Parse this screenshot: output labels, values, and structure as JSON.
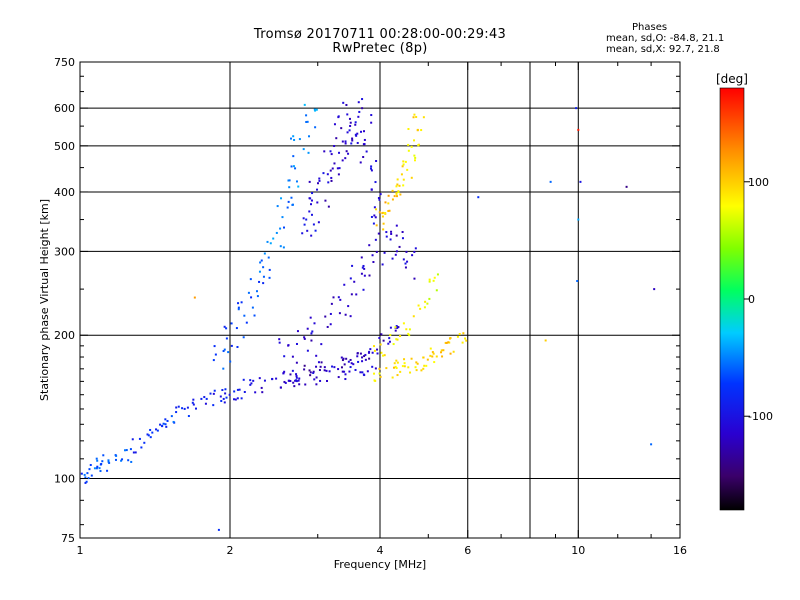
{
  "chart_data": {
    "type": "scatter",
    "title": "Tromsø 20170711 00:28:00-00:29:43",
    "subtitle": "RwPretec (8p)",
    "xlabel": "Frequency [MHz]",
    "ylabel": "Stationary phase Virtual Height [km]",
    "x_scale": "log",
    "y_scale": "log",
    "xlim": [
      1,
      16
    ],
    "ylim": [
      75,
      750
    ],
    "x_ticks": [
      1,
      2,
      4,
      6,
      10,
      16
    ],
    "x_tick_labels": [
      "1",
      "2",
      "4",
      "6",
      "10",
      "16"
    ],
    "x_minor_ticks": [
      3,
      5,
      7,
      8,
      9,
      12,
      14
    ],
    "y_ticks": [
      75,
      100,
      200,
      300,
      400,
      500,
      600,
      750
    ],
    "y_tick_labels": [
      "75",
      "100",
      "200",
      "300",
      "400",
      "500",
      "600",
      "750"
    ],
    "grid": true,
    "grid_x": [
      2,
      4,
      6,
      8,
      10
    ],
    "grid_y": [
      100,
      200,
      300,
      400,
      500,
      600
    ],
    "phase_stats": {
      "heading": "Phases",
      "line_o": "mean, sd,O: -84.8, 21.1",
      "line_x": "mean, sd,X:  92.7, 21.8"
    },
    "colorbar": {
      "label": "[deg]",
      "range": [
        -180,
        180
      ],
      "ticks": [
        -100,
        0,
        100
      ],
      "tick_labels": [
        "-100",
        "0",
        "100"
      ],
      "colormap": "rainbow"
    },
    "series": [
      {
        "x": [
          1.02,
          1.05,
          1.08,
          1.12,
          1.18,
          1.25,
          1.3,
          1.38,
          1.45,
          1.5,
          1.6,
          1.7,
          1.8,
          1.9,
          2.0,
          2.1,
          2.2,
          2.35,
          2.5,
          2.65,
          2.8,
          3.0,
          3.2,
          3.4,
          3.6,
          3.8
        ],
        "y": [
          100,
          102,
          106,
          108,
          108,
          112,
          118,
          125,
          130,
          133,
          138,
          142,
          145,
          148,
          150,
          152,
          155,
          158,
          160,
          162,
          163,
          164,
          166,
          168,
          170,
          172
        ],
        "phase": [
          -75,
          -60,
          -60,
          -65,
          -60,
          -70,
          -90,
          -80,
          -75,
          -70,
          -80,
          -90,
          -95,
          -90,
          -90,
          -100,
          -100,
          -110,
          -110,
          -110,
          -115,
          -110,
          -110,
          -110,
          -110,
          -110
        ],
        "spread_x": 0.035,
        "spread_y": 0.04,
        "repeat": 6
      },
      {
        "x": [
          1.95,
          2.05,
          2.15,
          2.25,
          2.35,
          2.45,
          2.55,
          2.65,
          2.75,
          2.85
        ],
        "y": [
          180,
          200,
          225,
          250,
          280,
          320,
          370,
          430,
          500,
          580
        ],
        "phase": [
          -70,
          -75,
          -70,
          -70,
          -60,
          -55,
          -55,
          -50,
          -50,
          -45
        ],
        "spread_x": 0.05,
        "spread_y": 0.06,
        "repeat": 8
      },
      {
        "x": [
          2.9,
          3.0,
          3.1,
          3.2,
          3.3,
          3.4,
          3.5,
          3.6,
          3.7,
          3.8,
          3.9
        ],
        "y": [
          350,
          380,
          420,
          460,
          500,
          540,
          560,
          560,
          520,
          450,
          380
        ],
        "phase": [
          -100,
          -110,
          -115,
          -110,
          -120,
          -115,
          -110,
          -115,
          -110,
          -105,
          -110
        ],
        "spread_x": 0.04,
        "spread_y": 0.12,
        "repeat": 9
      },
      {
        "x": [
          2.6,
          2.8,
          3.0,
          3.2,
          3.4,
          3.6,
          3.8,
          4.0,
          4.2,
          4.4,
          4.6
        ],
        "y": [
          180,
          190,
          200,
          220,
          240,
          260,
          290,
          310,
          320,
          300,
          280
        ],
        "phase": [
          -110,
          -115,
          -115,
          -120,
          -120,
          -115,
          -115,
          -110,
          -110,
          -115,
          -110
        ],
        "spread_x": 0.035,
        "spread_y": 0.1,
        "repeat": 7
      },
      {
        "x": [
          2.7,
          2.9,
          3.1,
          3.3,
          3.5,
          3.7,
          3.9,
          4.1,
          4.3
        ],
        "y": [
          165,
          168,
          172,
          175,
          178,
          182,
          188,
          195,
          205
        ],
        "phase": [
          -120,
          -125,
          -125,
          -120,
          -120,
          -125,
          -120,
          -115,
          -115
        ],
        "spread_x": 0.03,
        "spread_y": 0.03,
        "repeat": 6
      },
      {
        "x": [
          4.0,
          4.1,
          4.2,
          4.3,
          4.4,
          4.5,
          4.6,
          4.7,
          4.8
        ],
        "y": [
          350,
          370,
          380,
          400,
          420,
          450,
          480,
          520,
          560
        ],
        "phase": [
          95,
          100,
          105,
          95,
          90,
          90,
          85,
          90,
          95
        ],
        "spread_x": 0.03,
        "spread_y": 0.05,
        "repeat": 6
      },
      {
        "x": [
          4.0,
          4.2,
          4.4,
          4.6,
          4.8,
          5.0,
          5.2,
          5.4,
          5.6,
          5.8
        ],
        "y": [
          165,
          168,
          170,
          172,
          175,
          178,
          182,
          186,
          190,
          195
        ],
        "phase": [
          90,
          95,
          92,
          90,
          88,
          95,
          98,
          100,
          105,
          100
        ],
        "spread_x": 0.03,
        "spread_y": 0.04,
        "repeat": 6
      },
      {
        "x": [
          4.0,
          4.3,
          4.6,
          4.9,
          5.1
        ],
        "y": [
          190,
          200,
          210,
          230,
          260
        ],
        "phase": [
          85,
          85,
          80,
          75,
          70
        ],
        "spread_x": 0.03,
        "spread_y": 0.05,
        "repeat": 6
      },
      {
        "x": [
          8.6,
          8.8,
          9.9,
          10.0,
          10.1,
          10.0,
          9.95,
          12.5,
          14.2,
          14.0,
          6.3,
          1.7,
          1.9
        ],
        "y": [
          195,
          420,
          600,
          540,
          420,
          350,
          260,
          410,
          250,
          118,
          390,
          240,
          78
        ],
        "phase": [
          100,
          -60,
          -90,
          170,
          -100,
          -40,
          -60,
          -140,
          -120,
          -60,
          -80,
          120,
          -80
        ],
        "spread_x": 0.0,
        "spread_y": 0.0,
        "repeat": 1
      }
    ]
  }
}
